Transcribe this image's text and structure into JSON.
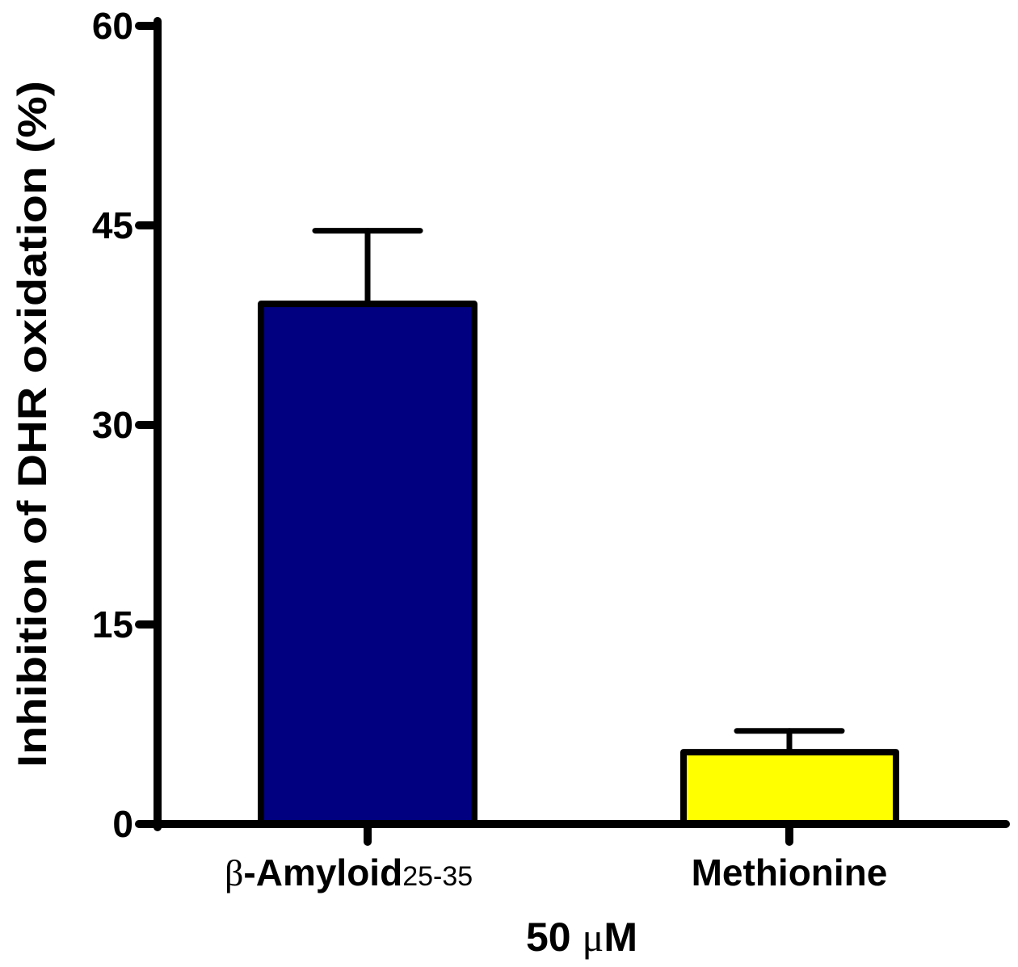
{
  "chart_data": {
    "type": "bar",
    "title": "",
    "categories": [
      "β-Amyloid25-35",
      "Methionine"
    ],
    "values": [
      39.1,
      5.4
    ],
    "error_upper": [
      44.6,
      7.0
    ],
    "colors": [
      "#000080",
      "#ffff00"
    ],
    "xlabel": "50 μM",
    "ylabel": "Inhibition of DHR oxidation (%)",
    "ylim": [
      0,
      60
    ],
    "yticks": [
      0,
      15,
      30,
      45,
      60
    ],
    "grid": false,
    "legend": null
  },
  "labels": {
    "ytick_0": "0",
    "ytick_15": "15",
    "ytick_30": "30",
    "ytick_45": "45",
    "ytick_60": "60",
    "ylabel": "Inhibition of DHR oxidation (%)",
    "cat1_greek": "β",
    "cat1_main": "-Amyloid",
    "cat1_sub": "25-35",
    "cat2": "Methionine",
    "xlabel_num": "50 ",
    "xlabel_greek": "μ",
    "xlabel_unit": "M"
  }
}
